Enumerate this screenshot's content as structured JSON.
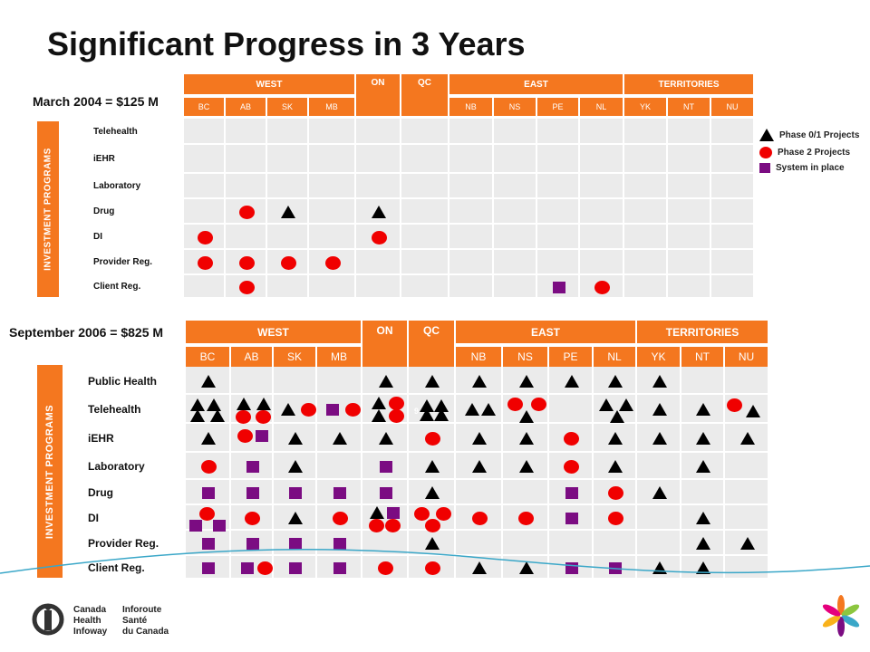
{
  "title": "Significant Progress in 3 Years",
  "legend": [
    {
      "type": "tri",
      "label": "Phase 0/1 Projects"
    },
    {
      "type": "circ",
      "label": "Phase 2 Projects"
    },
    {
      "type": "sq",
      "label": "System in place"
    }
  ],
  "colors": {
    "orange": "#F4771F",
    "red": "#F00000",
    "purple": "#7B0C82",
    "black": "#000000"
  },
  "footer": {
    "logo_en": [
      "Canada",
      "Health",
      "Infoway"
    ],
    "logo_fr": [
      "Inforoute",
      "Santé",
      "du Canada"
    ]
  },
  "sections": [
    {
      "id": "s1",
      "period": "March 2004 = $125 M",
      "side_label": "INVESTMENT PROGRAMS",
      "regions": [
        "WEST",
        "ON",
        "QC",
        "EAST",
        "TERRITORIES"
      ],
      "provinces": [
        "BC",
        "AB",
        "SK",
        "MB",
        "",
        "",
        "NB",
        "NS",
        "PE",
        "NL",
        "YK",
        "NT",
        "NU"
      ],
      "rows": [
        "Telehealth",
        "iEHR",
        "Laboratory",
        "Drug",
        "DI",
        "Provider Reg.",
        "Client Reg."
      ],
      "markers": [
        {
          "r": 3,
          "c": 1,
          "t": "circ"
        },
        {
          "r": 3,
          "c": 2,
          "t": "tri"
        },
        {
          "r": 3,
          "c": 4,
          "t": "tri"
        },
        {
          "r": 4,
          "c": 0,
          "t": "circ"
        },
        {
          "r": 4,
          "c": 4,
          "t": "circ"
        },
        {
          "r": 5,
          "c": 0,
          "t": "circ"
        },
        {
          "r": 5,
          "c": 1,
          "t": "circ"
        },
        {
          "r": 5,
          "c": 2,
          "t": "circ"
        },
        {
          "r": 5,
          "c": 3,
          "t": "circ"
        },
        {
          "r": 6,
          "c": 1,
          "t": "circ"
        },
        {
          "r": 6,
          "c": 8,
          "t": "sq"
        },
        {
          "r": 6,
          "c": 9,
          "t": "circ"
        }
      ]
    },
    {
      "id": "s2",
      "period": "September 2006 = $825 M",
      "side_label": "INVESTMENT PROGRAMS",
      "regions": [
        "WEST",
        "ON",
        "QC",
        "EAST",
        "TERRITORIES"
      ],
      "provinces": [
        "BC",
        "AB",
        "SK",
        "MB",
        "",
        "",
        "NB",
        "NS",
        "PE",
        "NL",
        "YK",
        "NT",
        "NU"
      ],
      "rows": [
        "Public Health",
        "Telehealth",
        "iEHR",
        "Laboratory",
        "Drug",
        "DI",
        "Provider Reg.",
        "Client Reg."
      ],
      "markers": [
        {
          "r": 0,
          "c": 0,
          "t": "tri"
        },
        {
          "r": 0,
          "c": 4,
          "t": "tri"
        },
        {
          "r": 0,
          "c": 5,
          "t": "tri"
        },
        {
          "r": 0,
          "c": 6,
          "t": "tri"
        },
        {
          "r": 0,
          "c": 7,
          "t": "tri"
        },
        {
          "r": 0,
          "c": 8,
          "t": "tri"
        },
        {
          "r": 0,
          "c": 9,
          "t": "tri"
        },
        {
          "r": 0,
          "c": 10,
          "t": "tri"
        },
        {
          "r": 1,
          "c": 0,
          "t": "tri",
          "dx": -12,
          "dy": -5
        },
        {
          "r": 1,
          "c": 0,
          "t": "tri",
          "dx": 6,
          "dy": -5
        },
        {
          "r": 1,
          "c": 0,
          "t": "tri",
          "dx": -12,
          "dy": 7
        },
        {
          "r": 1,
          "c": 0,
          "t": "tri",
          "dx": 10,
          "dy": 7
        },
        {
          "r": 1,
          "c": 1,
          "t": "tri",
          "dx": -10,
          "dy": -6
        },
        {
          "r": 1,
          "c": 1,
          "t": "tri",
          "dx": 12,
          "dy": -6
        },
        {
          "r": 1,
          "c": 1,
          "t": "circ",
          "dx": -10,
          "dy": 8
        },
        {
          "r": 1,
          "c": 1,
          "t": "circ",
          "dx": 12,
          "dy": 8
        },
        {
          "r": 1,
          "c": 2,
          "t": "tri",
          "dx": -8
        },
        {
          "r": 1,
          "c": 2,
          "t": "circ",
          "dx": 14
        },
        {
          "r": 1,
          "c": 3,
          "t": "sq",
          "dx": -8
        },
        {
          "r": 1,
          "c": 3,
          "t": "circ",
          "dx": 14
        },
        {
          "r": 1,
          "c": 4,
          "t": "tri",
          "dx": -8,
          "dy": -7
        },
        {
          "r": 1,
          "c": 4,
          "t": "circ",
          "dx": 12,
          "dy": -7
        },
        {
          "r": 1,
          "c": 4,
          "t": "tri",
          "dx": -8,
          "dy": 7
        },
        {
          "r": 1,
          "c": 4,
          "t": "circ",
          "dx": 12,
          "dy": 7
        },
        {
          "r": 1,
          "c": 5,
          "t": "tri",
          "dx": -6,
          "dy": -4
        },
        {
          "r": 1,
          "c": 5,
          "t": "tri",
          "dx": 10,
          "dy": -4
        },
        {
          "r": 1,
          "c": 5,
          "t": "tri",
          "dx": -6,
          "dy": 6
        },
        {
          "r": 1,
          "c": 5,
          "t": "tri",
          "dx": 10,
          "dy": 6
        },
        {
          "r": 1,
          "c": 6,
          "t": "tri",
          "dx": -8
        },
        {
          "r": 1,
          "c": 6,
          "t": "tri",
          "dx": 10
        },
        {
          "r": 1,
          "c": 7,
          "t": "circ",
          "dx": -12,
          "dy": -6
        },
        {
          "r": 1,
          "c": 7,
          "t": "circ",
          "dx": 14,
          "dy": -6
        },
        {
          "r": 1,
          "c": 7,
          "t": "tri",
          "dx": 0,
          "dy": 8
        },
        {
          "r": 1,
          "c": 9,
          "t": "tri",
          "dx": -10,
          "dy": -5
        },
        {
          "r": 1,
          "c": 9,
          "t": "tri",
          "dx": 12,
          "dy": -5
        },
        {
          "r": 1,
          "c": 9,
          "t": "tri",
          "dx": 2,
          "dy": 8
        },
        {
          "r": 1,
          "c": 10,
          "t": "tri"
        },
        {
          "r": 1,
          "c": 11,
          "t": "tri"
        },
        {
          "r": 1,
          "c": 12,
          "t": "circ",
          "dx": -14,
          "dy": -5
        },
        {
          "r": 1,
          "c": 12,
          "t": "tri",
          "dx": 6,
          "dy": 2
        },
        {
          "r": 2,
          "c": 0,
          "t": "tri"
        },
        {
          "r": 2,
          "c": 1,
          "t": "circ",
          "dx": -8,
          "dy": -3
        },
        {
          "r": 2,
          "c": 1,
          "t": "sq",
          "dx": 10,
          "dy": -3
        },
        {
          "r": 2,
          "c": 2,
          "t": "tri"
        },
        {
          "r": 2,
          "c": 3,
          "t": "tri"
        },
        {
          "r": 2,
          "c": 4,
          "t": "tri"
        },
        {
          "r": 2,
          "c": 5,
          "t": "circ"
        },
        {
          "r": 2,
          "c": 6,
          "t": "tri"
        },
        {
          "r": 2,
          "c": 7,
          "t": "tri"
        },
        {
          "r": 2,
          "c": 8,
          "t": "circ"
        },
        {
          "r": 2,
          "c": 9,
          "t": "tri"
        },
        {
          "r": 2,
          "c": 10,
          "t": "tri"
        },
        {
          "r": 2,
          "c": 11,
          "t": "tri"
        },
        {
          "r": 2,
          "c": 12,
          "t": "tri"
        },
        {
          "r": 3,
          "c": 0,
          "t": "circ"
        },
        {
          "r": 3,
          "c": 1,
          "t": "sq"
        },
        {
          "r": 3,
          "c": 2,
          "t": "tri"
        },
        {
          "r": 3,
          "c": 4,
          "t": "sq"
        },
        {
          "r": 3,
          "c": 5,
          "t": "tri"
        },
        {
          "r": 3,
          "c": 6,
          "t": "tri"
        },
        {
          "r": 3,
          "c": 7,
          "t": "tri"
        },
        {
          "r": 3,
          "c": 8,
          "t": "circ"
        },
        {
          "r": 3,
          "c": 9,
          "t": "tri"
        },
        {
          "r": 3,
          "c": 11,
          "t": "tri"
        },
        {
          "r": 4,
          "c": 0,
          "t": "sq"
        },
        {
          "r": 4,
          "c": 1,
          "t": "sq"
        },
        {
          "r": 4,
          "c": 2,
          "t": "sq"
        },
        {
          "r": 4,
          "c": 3,
          "t": "sq"
        },
        {
          "r": 4,
          "c": 4,
          "t": "sq"
        },
        {
          "r": 4,
          "c": 5,
          "t": "tri"
        },
        {
          "r": 4,
          "c": 8,
          "t": "sq"
        },
        {
          "r": 4,
          "c": 9,
          "t": "circ"
        },
        {
          "r": 4,
          "c": 10,
          "t": "tri"
        },
        {
          "r": 5,
          "c": 0,
          "t": "circ",
          "dx": -2,
          "dy": -5
        },
        {
          "r": 5,
          "c": 0,
          "t": "sq",
          "dx": -14,
          "dy": 8
        },
        {
          "r": 5,
          "c": 0,
          "t": "sq",
          "dx": 12,
          "dy": 8
        },
        {
          "r": 5,
          "c": 1,
          "t": "circ"
        },
        {
          "r": 5,
          "c": 2,
          "t": "tri"
        },
        {
          "r": 5,
          "c": 3,
          "t": "circ"
        },
        {
          "r": 5,
          "c": 4,
          "t": "tri",
          "dx": -10,
          "dy": -6
        },
        {
          "r": 5,
          "c": 4,
          "t": "sq",
          "dx": 8,
          "dy": -6
        },
        {
          "r": 5,
          "c": 4,
          "t": "circ",
          "dx": -10,
          "dy": 8
        },
        {
          "r": 5,
          "c": 4,
          "t": "circ",
          "dx": 8,
          "dy": 8
        },
        {
          "r": 5,
          "c": 5,
          "t": "circ",
          "dx": -12,
          "dy": -5
        },
        {
          "r": 5,
          "c": 5,
          "t": "circ",
          "dx": 12,
          "dy": -5
        },
        {
          "r": 5,
          "c": 5,
          "t": "circ",
          "dx": 0,
          "dy": 8
        },
        {
          "r": 5,
          "c": 6,
          "t": "circ"
        },
        {
          "r": 5,
          "c": 7,
          "t": "circ"
        },
        {
          "r": 5,
          "c": 8,
          "t": "sq"
        },
        {
          "r": 5,
          "c": 9,
          "t": "circ"
        },
        {
          "r": 5,
          "c": 11,
          "t": "tri"
        },
        {
          "r": 6,
          "c": 0,
          "t": "sq"
        },
        {
          "r": 6,
          "c": 1,
          "t": "sq"
        },
        {
          "r": 6,
          "c": 2,
          "t": "sq"
        },
        {
          "r": 6,
          "c": 3,
          "t": "sq"
        },
        {
          "r": 6,
          "c": 5,
          "t": "tri"
        },
        {
          "r": 6,
          "c": 11,
          "t": "tri"
        },
        {
          "r": 6,
          "c": 12,
          "t": "tri"
        },
        {
          "r": 7,
          "c": 0,
          "t": "sq"
        },
        {
          "r": 7,
          "c": 1,
          "t": "sq",
          "dx": -6
        },
        {
          "r": 7,
          "c": 1,
          "t": "circ",
          "dx": 14
        },
        {
          "r": 7,
          "c": 2,
          "t": "sq"
        },
        {
          "r": 7,
          "c": 3,
          "t": "sq"
        },
        {
          "r": 7,
          "c": 4,
          "t": "circ"
        },
        {
          "r": 7,
          "c": 5,
          "t": "circ"
        },
        {
          "r": 7,
          "c": 6,
          "t": "tri"
        },
        {
          "r": 7,
          "c": 7,
          "t": "tri"
        },
        {
          "r": 7,
          "c": 8,
          "t": "sq"
        },
        {
          "r": 7,
          "c": 9,
          "t": "sq"
        },
        {
          "r": 7,
          "c": 10,
          "t": "tri"
        },
        {
          "r": 7,
          "c": 11,
          "t": "tri"
        }
      ],
      "cell_note": {
        "r": 1,
        "c": 5,
        "text": "9"
      }
    }
  ]
}
